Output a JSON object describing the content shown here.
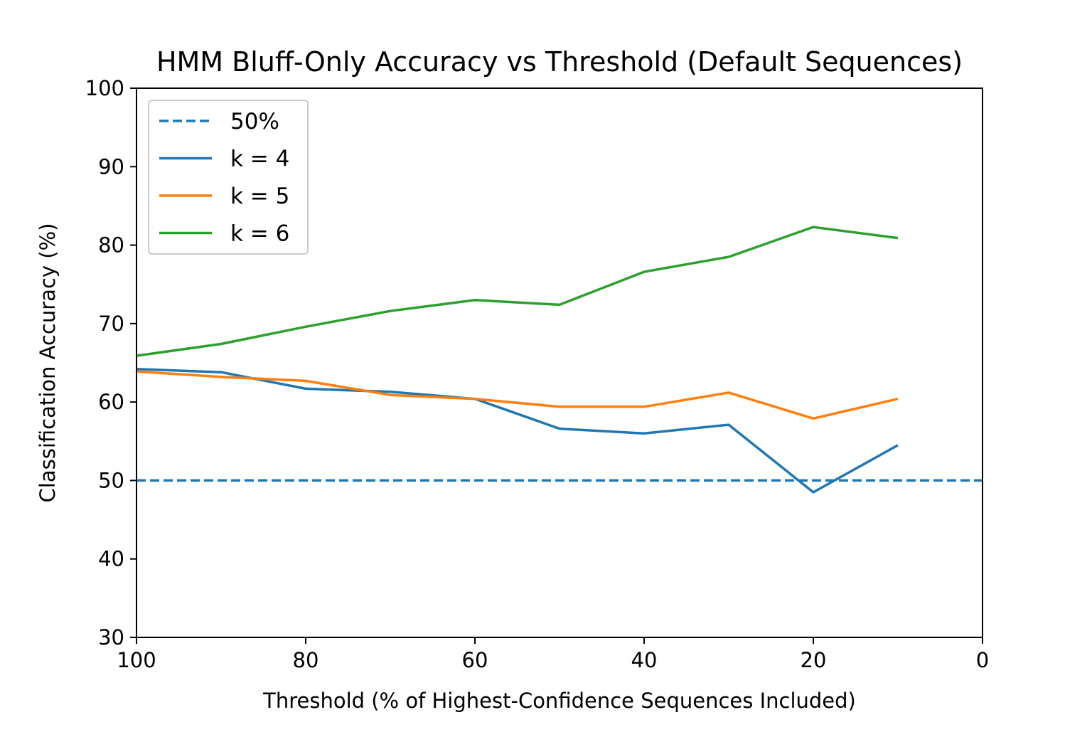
{
  "chart_data": {
    "type": "line",
    "title": "HMM Bluff-Only Accuracy vs Threshold (Default Sequences)",
    "xlabel": "Threshold (% of Highest-Confidence Sequences Included)",
    "ylabel": "Classification Accuracy (%)",
    "xlim": [
      100,
      0
    ],
    "ylim": [
      30,
      100
    ],
    "x_ticks": [
      100,
      80,
      60,
      40,
      20,
      0
    ],
    "y_ticks": [
      30,
      40,
      50,
      60,
      70,
      80,
      90,
      100
    ],
    "x_tick_labels": [
      "100",
      "80",
      "60",
      "40",
      "20",
      "0"
    ],
    "y_tick_labels": [
      "30",
      "40",
      "50",
      "60",
      "70",
      "80",
      "90",
      "100"
    ],
    "grid": false,
    "legend_position": "upper-left",
    "reference_line": {
      "name": "50%",
      "y": 50,
      "style": "dashed",
      "color": "#1f77b4"
    },
    "x": [
      100,
      90,
      80,
      70,
      60,
      50,
      40,
      30,
      20,
      10
    ],
    "series": [
      {
        "name": "k = 4",
        "color": "#1f77b4",
        "values": [
          64.2,
          63.8,
          61.7,
          61.3,
          60.4,
          56.6,
          56.0,
          57.1,
          48.5,
          54.5
        ]
      },
      {
        "name": "k = 5",
        "color": "#ff7f0e",
        "values": [
          63.9,
          63.2,
          62.7,
          60.9,
          60.4,
          59.4,
          59.4,
          61.2,
          57.9,
          60.4
        ]
      },
      {
        "name": "k = 6",
        "color": "#2ca02c",
        "values": [
          65.9,
          67.4,
          69.6,
          71.6,
          73.0,
          72.4,
          76.6,
          78.5,
          82.3,
          80.9
        ]
      }
    ]
  }
}
